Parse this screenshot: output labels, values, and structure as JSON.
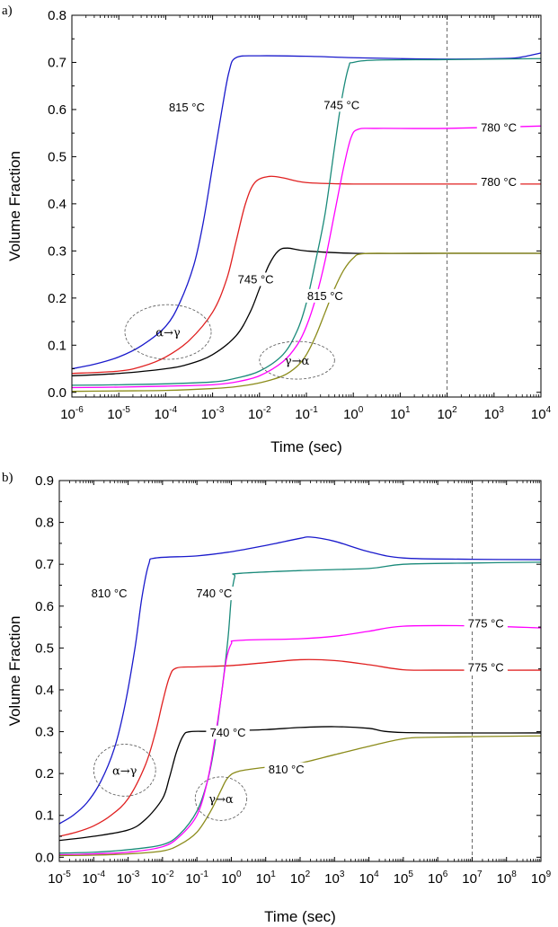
{
  "chart_data": [
    {
      "type": "line",
      "panel_label": "a)",
      "xlabel": "Time (sec)",
      "ylabel": "Volume Fraction",
      "xscale": "log",
      "xlim": [
        -6,
        4
      ],
      "ylim": [
        -0.01,
        0.8
      ],
      "x_ticks": [
        -6,
        -5,
        -4,
        -3,
        -2,
        -1,
        0,
        1,
        2,
        3,
        4
      ],
      "y_ticks": [
        "0.0",
        "0.1",
        "0.2",
        "0.3",
        "0.4",
        "0.5",
        "0.6",
        "0.7",
        "0.8"
      ],
      "vline_x": 2,
      "series": [
        {
          "color": "#1a1acc",
          "values": [
            [
              -6,
              0.05
            ],
            [
              -5.5,
              0.06
            ],
            [
              -5,
              0.075
            ],
            [
              -4.5,
              0.1
            ],
            [
              -4,
              0.14
            ],
            [
              -3.7,
              0.19
            ],
            [
              -3.4,
              0.27
            ],
            [
              -3.2,
              0.36
            ],
            [
              -3,
              0.48
            ],
            [
              -2.8,
              0.6
            ],
            [
              -2.65,
              0.68
            ],
            [
              -2.5,
              0.71
            ],
            [
              -2,
              0.714
            ],
            [
              -1,
              0.713
            ],
            [
              0,
              0.71
            ],
            [
              1,
              0.708
            ],
            [
              2,
              0.707
            ],
            [
              3,
              0.708
            ],
            [
              3.5,
              0.71
            ],
            [
              4,
              0.72
            ]
          ]
        },
        {
          "color": "#e02020",
          "values": [
            [
              -6,
              0.04
            ],
            [
              -5,
              0.045
            ],
            [
              -4.5,
              0.055
            ],
            [
              -4,
              0.075
            ],
            [
              -3.5,
              0.11
            ],
            [
              -3,
              0.17
            ],
            [
              -2.7,
              0.24
            ],
            [
              -2.5,
              0.32
            ],
            [
              -2.3,
              0.4
            ],
            [
              -2.1,
              0.445
            ],
            [
              -1.8,
              0.458
            ],
            [
              -1.5,
              0.455
            ],
            [
              -1,
              0.445
            ],
            [
              0,
              0.442
            ],
            [
              2,
              0.442
            ],
            [
              4,
              0.442
            ]
          ]
        },
        {
          "color": "#000000",
          "values": [
            [
              -6,
              0.035
            ],
            [
              -5,
              0.04
            ],
            [
              -4,
              0.05
            ],
            [
              -3.5,
              0.06
            ],
            [
              -3,
              0.08
            ],
            [
              -2.5,
              0.12
            ],
            [
              -2.2,
              0.17
            ],
            [
              -2,
              0.22
            ],
            [
              -1.8,
              0.27
            ],
            [
              -1.6,
              0.3
            ],
            [
              -1.4,
              0.306
            ],
            [
              -1,
              0.3
            ],
            [
              0,
              0.295
            ],
            [
              2,
              0.295
            ],
            [
              4,
              0.295
            ]
          ]
        },
        {
          "color": "#1a8a7a",
          "values": [
            [
              -6,
              0.015
            ],
            [
              -5,
              0.016
            ],
            [
              -4,
              0.018
            ],
            [
              -3,
              0.022
            ],
            [
              -2.5,
              0.03
            ],
            [
              -2,
              0.045
            ],
            [
              -1.5,
              0.08
            ],
            [
              -1.2,
              0.13
            ],
            [
              -1,
              0.19
            ],
            [
              -0.8,
              0.28
            ],
            [
              -0.6,
              0.38
            ],
            [
              -0.4,
              0.52
            ],
            [
              -0.25,
              0.62
            ],
            [
              -0.1,
              0.69
            ],
            [
              0,
              0.7
            ],
            [
              0.5,
              0.705
            ],
            [
              2,
              0.706
            ],
            [
              4,
              0.708
            ]
          ]
        },
        {
          "color": "#ff00ff",
          "values": [
            [
              -6,
              0.01
            ],
            [
              -5,
              0.011
            ],
            [
              -4,
              0.013
            ],
            [
              -3,
              0.016
            ],
            [
              -2.5,
              0.022
            ],
            [
              -2,
              0.035
            ],
            [
              -1.5,
              0.065
            ],
            [
              -1.2,
              0.1
            ],
            [
              -1,
              0.14
            ],
            [
              -0.8,
              0.2
            ],
            [
              -0.6,
              0.28
            ],
            [
              -0.4,
              0.38
            ],
            [
              -0.2,
              0.48
            ],
            [
              -0.05,
              0.54
            ],
            [
              0.1,
              0.558
            ],
            [
              0.5,
              0.56
            ],
            [
              2,
              0.56
            ],
            [
              4,
              0.565
            ]
          ]
        },
        {
          "color": "#8b8b1a",
          "values": [
            [
              -6,
              0.002
            ],
            [
              -5,
              0.003
            ],
            [
              -4,
              0.004
            ],
            [
              -3,
              0.008
            ],
            [
              -2.5,
              0.012
            ],
            [
              -2,
              0.02
            ],
            [
              -1.5,
              0.035
            ],
            [
              -1.2,
              0.055
            ],
            [
              -1,
              0.08
            ],
            [
              -0.8,
              0.12
            ],
            [
              -0.6,
              0.17
            ],
            [
              -0.4,
              0.22
            ],
            [
              -0.2,
              0.26
            ],
            [
              0,
              0.285
            ],
            [
              0.2,
              0.294
            ],
            [
              1,
              0.295
            ],
            [
              4,
              0.295
            ]
          ]
        }
      ],
      "annotations": [
        {
          "text": "815 °C",
          "x": -3.55,
          "y": 0.6
        },
        {
          "text": "745 °C",
          "x": -0.25,
          "y": 0.605
        },
        {
          "text": "780 °C",
          "x": 3.1,
          "y": 0.557
        },
        {
          "text": "780 °C",
          "x": 3.1,
          "y": 0.442
        },
        {
          "text": "745 °C",
          "x": -2.08,
          "y": 0.235
        },
        {
          "text": "815 °C",
          "x": -0.6,
          "y": 0.2
        }
      ],
      "ellipses": [
        {
          "text": "α→γ",
          "cx": -3.95,
          "cy": 0.128,
          "rx": 0.92,
          "ry": 0.058
        },
        {
          "text": "γ→α",
          "cx": -1.2,
          "cy": 0.068,
          "rx": 0.8,
          "ry": 0.04
        }
      ]
    },
    {
      "type": "line",
      "panel_label": "b)",
      "xlabel": "Time (sec)",
      "ylabel": "Volume Fraction",
      "xscale": "log",
      "xlim": [
        -5,
        9
      ],
      "ylim": [
        -0.01,
        0.9
      ],
      "x_ticks": [
        -5,
        -4,
        -3,
        -2,
        -1,
        0,
        1,
        2,
        3,
        4,
        5,
        6,
        7,
        8,
        9
      ],
      "y_ticks": [
        "0.0",
        "0.1",
        "0.2",
        "0.3",
        "0.4",
        "0.5",
        "0.6",
        "0.7",
        "0.8",
        "0.9"
      ],
      "vline_x": 7,
      "series": [
        {
          "color": "#1a1acc",
          "values": [
            [
              -5,
              0.08
            ],
            [
              -4.6,
              0.1
            ],
            [
              -4.2,
              0.13
            ],
            [
              -3.8,
              0.18
            ],
            [
              -3.4,
              0.26
            ],
            [
              -3.1,
              0.36
            ],
            [
              -2.8,
              0.5
            ],
            [
              -2.6,
              0.62
            ],
            [
              -2.4,
              0.7
            ],
            [
              -2.2,
              0.715
            ],
            [
              -1,
              0.72
            ],
            [
              0,
              0.73
            ],
            [
              1,
              0.745
            ],
            [
              2,
              0.762
            ],
            [
              2.3,
              0.765
            ],
            [
              3,
              0.755
            ],
            [
              4,
              0.73
            ],
            [
              5,
              0.715
            ],
            [
              7,
              0.712
            ],
            [
              9,
              0.711
            ]
          ]
        },
        {
          "color": "#e02020",
          "values": [
            [
              -5,
              0.05
            ],
            [
              -4.5,
              0.06
            ],
            [
              -4,
              0.075
            ],
            [
              -3.5,
              0.1
            ],
            [
              -3,
              0.14
            ],
            [
              -2.5,
              0.22
            ],
            [
              -2.2,
              0.3
            ],
            [
              -2,
              0.37
            ],
            [
              -1.8,
              0.43
            ],
            [
              -1.6,
              0.452
            ],
            [
              -1,
              0.455
            ],
            [
              0,
              0.458
            ],
            [
              1,
              0.465
            ],
            [
              2,
              0.472
            ],
            [
              3,
              0.47
            ],
            [
              4,
              0.46
            ],
            [
              5,
              0.448
            ],
            [
              6,
              0.447
            ],
            [
              9,
              0.447
            ]
          ]
        },
        {
          "color": "#000000",
          "values": [
            [
              -5,
              0.04
            ],
            [
              -4,
              0.05
            ],
            [
              -3,
              0.065
            ],
            [
              -2.5,
              0.09
            ],
            [
              -2,
              0.14
            ],
            [
              -1.8,
              0.19
            ],
            [
              -1.6,
              0.25
            ],
            [
              -1.4,
              0.29
            ],
            [
              -1.2,
              0.3
            ],
            [
              -0.5,
              0.301
            ],
            [
              1,
              0.305
            ],
            [
              2,
              0.31
            ],
            [
              3,
              0.312
            ],
            [
              4,
              0.308
            ],
            [
              5,
              0.298
            ],
            [
              9,
              0.297
            ]
          ]
        },
        {
          "color": "#1a8a7a",
          "values": [
            [
              -5,
              0.01
            ],
            [
              -4,
              0.012
            ],
            [
              -3,
              0.018
            ],
            [
              -2,
              0.03
            ],
            [
              -1.5,
              0.055
            ],
            [
              -1,
              0.11
            ],
            [
              -0.7,
              0.18
            ],
            [
              -0.5,
              0.26
            ],
            [
              -0.3,
              0.38
            ],
            [
              -0.1,
              0.52
            ],
            [
              0,
              0.62
            ],
            [
              0.1,
              0.67
            ],
            [
              0.2,
              0.678
            ],
            [
              2,
              0.685
            ],
            [
              4,
              0.69
            ],
            [
              5,
              0.7
            ],
            [
              7,
              0.703
            ],
            [
              9,
              0.705
            ]
          ]
        },
        {
          "color": "#ff00ff",
          "values": [
            [
              -5,
              0.006
            ],
            [
              -4,
              0.008
            ],
            [
              -3,
              0.012
            ],
            [
              -2,
              0.025
            ],
            [
              -1.5,
              0.05
            ],
            [
              -1,
              0.1
            ],
            [
              -0.7,
              0.18
            ],
            [
              -0.5,
              0.27
            ],
            [
              -0.3,
              0.38
            ],
            [
              -0.15,
              0.47
            ],
            [
              0,
              0.51
            ],
            [
              0.2,
              0.518
            ],
            [
              2,
              0.522
            ],
            [
              3,
              0.528
            ],
            [
              4,
              0.54
            ],
            [
              5,
              0.552
            ],
            [
              7,
              0.553
            ],
            [
              9,
              0.548
            ]
          ]
        },
        {
          "color": "#8b8b1a",
          "values": [
            [
              -5,
              0.004
            ],
            [
              -4,
              0.005
            ],
            [
              -3,
              0.008
            ],
            [
              -2,
              0.015
            ],
            [
              -1.5,
              0.03
            ],
            [
              -1,
              0.06
            ],
            [
              -0.6,
              0.11
            ],
            [
              -0.3,
              0.16
            ],
            [
              -0.1,
              0.19
            ],
            [
              0.2,
              0.205
            ],
            [
              1,
              0.215
            ],
            [
              2,
              0.225
            ],
            [
              3,
              0.245
            ],
            [
              4,
              0.265
            ],
            [
              5,
              0.283
            ],
            [
              6,
              0.287
            ],
            [
              9,
              0.29
            ]
          ]
        }
      ],
      "annotations": [
        {
          "text": "810 °C",
          "x": -3.55,
          "y": 0.625
        },
        {
          "text": "740 °C",
          "x": -0.5,
          "y": 0.625
        },
        {
          "text": "775 °C",
          "x": 7.4,
          "y": 0.553
        },
        {
          "text": "775 °C",
          "x": 7.4,
          "y": 0.448
        },
        {
          "text": "740 °C",
          "x": -0.1,
          "y": 0.293
        },
        {
          "text": "810 °C",
          "x": 1.6,
          "y": 0.205
        }
      ],
      "ellipses": [
        {
          "text": "α→γ",
          "cx": -3.1,
          "cy": 0.208,
          "rx": 0.9,
          "ry": 0.062
        },
        {
          "text": "γ→α",
          "cx": -0.3,
          "cy": 0.14,
          "rx": 0.75,
          "ry": 0.052
        }
      ]
    }
  ]
}
